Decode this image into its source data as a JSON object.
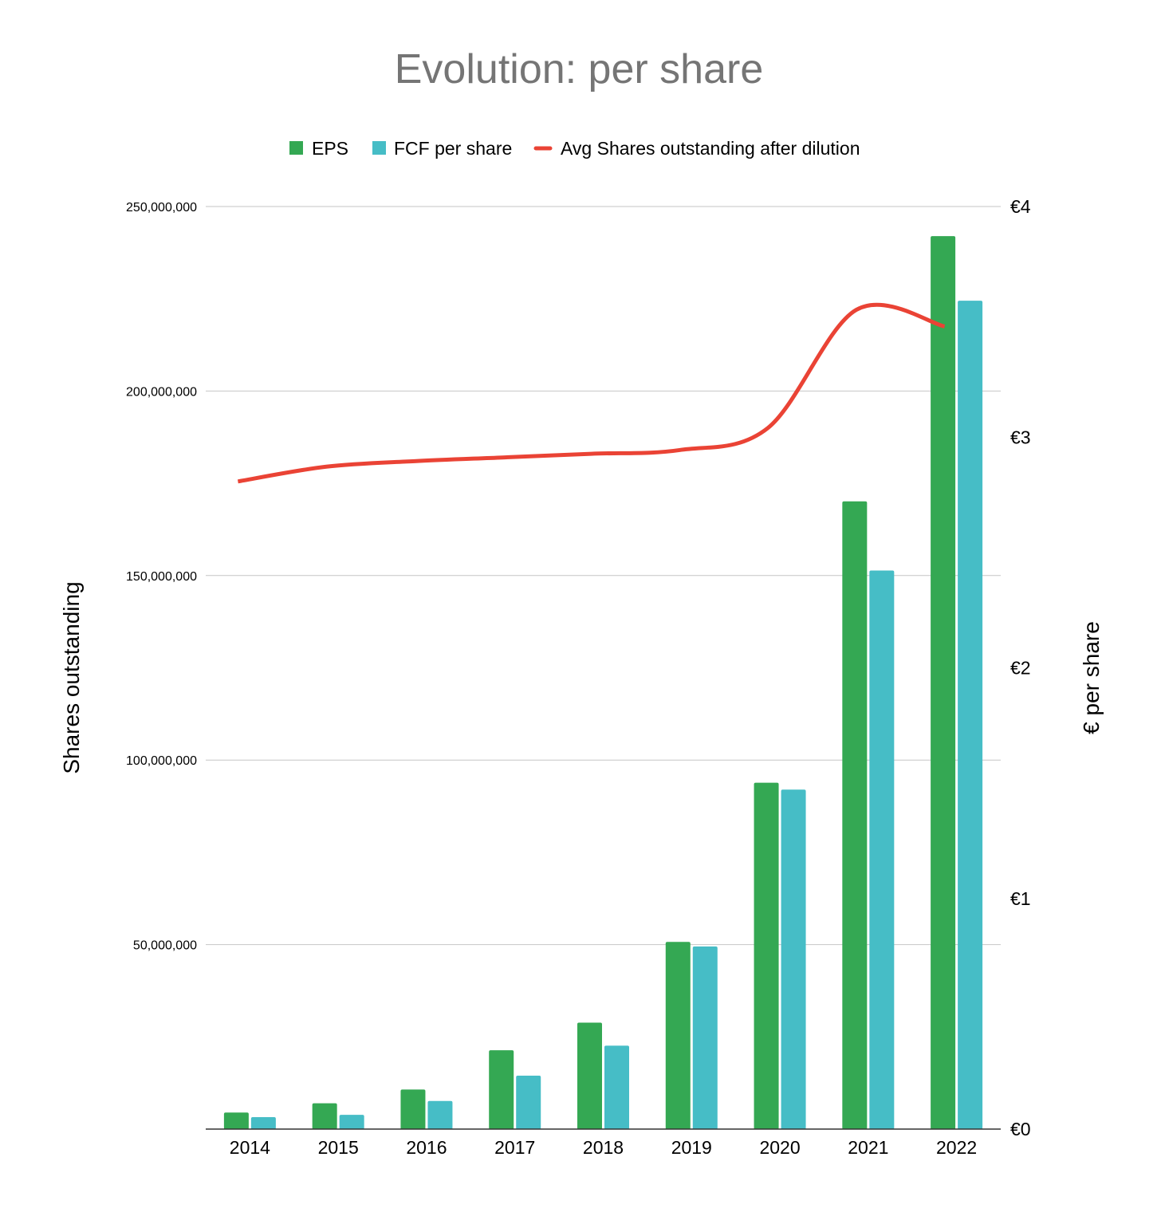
{
  "chart_data": {
    "type": "bar",
    "title": "Evolution: per share",
    "categories": [
      "2014",
      "2015",
      "2016",
      "2017",
      "2018",
      "2019",
      "2020",
      "2021",
      "2022"
    ],
    "series": [
      {
        "name": "EPS",
        "kind": "bar",
        "axis": "right",
        "color": "#34a853",
        "values": [
          0.07,
          0.11,
          0.17,
          0.34,
          0.46,
          0.81,
          1.5,
          2.72,
          3.87
        ]
      },
      {
        "name": "FCF per share",
        "kind": "bar",
        "axis": "right",
        "color": "#46bdc6",
        "values": [
          0.05,
          0.06,
          0.12,
          0.23,
          0.36,
          0.79,
          1.47,
          2.42,
          3.59
        ]
      },
      {
        "name": "Avg Shares outstanding after dilution",
        "kind": "line",
        "axis": "left",
        "color": "#ea4335",
        "values": [
          175500000,
          179500000,
          181000000,
          182000000,
          183000000,
          184000000,
          190000000,
          222000000,
          217500000
        ]
      }
    ],
    "left_axis": {
      "label": "Shares outstanding",
      "ylim": [
        0,
        250000000
      ],
      "ticks": [
        "50,000,000",
        "100,000,000",
        "150,000,000",
        "200,000,000",
        "250,000,000"
      ],
      "tick_values": [
        50000000,
        100000000,
        150000000,
        200000000,
        250000000
      ]
    },
    "right_axis": {
      "label": "€ per share",
      "ylim": [
        0,
        4
      ],
      "ticks": [
        "€0",
        "€1",
        "€2",
        "€3",
        "€4"
      ],
      "tick_values": [
        0,
        1,
        2,
        3,
        4
      ]
    },
    "xlabel": "",
    "grid": true,
    "legend_position": "top-center"
  }
}
